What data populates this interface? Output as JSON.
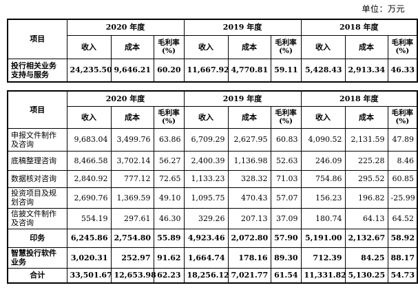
{
  "unit_label": "单位：万元",
  "table1": {
    "header_item": "项目",
    "years": [
      "2020 年度",
      "2019 年度",
      "2018 年度"
    ],
    "sub": [
      "收入",
      "成本",
      "毛利率(%)"
    ],
    "rows": [
      {
        "label": "投行相关业务支持与服务",
        "values": [
          "24,235.50",
          "9,646.21",
          "60.20",
          "11,667.92",
          "4,770.81",
          "59.11",
          "5,428.43",
          "2,913.34",
          "46.33"
        ]
      }
    ]
  },
  "table2": {
    "header_item": "项目",
    "years": [
      "2020 年度",
      "2019 年度",
      "2018 年度"
    ],
    "sub": [
      "收入",
      "成本",
      "毛利率(%)"
    ],
    "rows": [
      {
        "label": "申报文件制作及咨询",
        "values": [
          "9,683.04",
          "3,499.76",
          "63.86",
          "6,709.29",
          "2,627.95",
          "60.83",
          "4,090.52",
          "2,131.59",
          "47.89"
        ]
      },
      {
        "label": "底稿整理咨询",
        "values": [
          "8,466.58",
          "3,702.14",
          "56.27",
          "2,400.39",
          "1,136.98",
          "52.63",
          "246.09",
          "225.28",
          "8.46"
        ]
      },
      {
        "label": "数据核对咨询",
        "values": [
          "2,840.92",
          "777.12",
          "72.65",
          "1,133.23",
          "328.32",
          "71.03",
          "754.86",
          "295.52",
          "60.85"
        ]
      },
      {
        "label": "投资项目及规划咨询",
        "values": [
          "2,690.76",
          "1,369.59",
          "49.10",
          "1,095.75",
          "470.43",
          "57.07",
          "156.23",
          "196.82",
          "-25.99"
        ]
      },
      {
        "label": "信披文件制作及咨询",
        "values": [
          "554.19",
          "297.61",
          "46.30",
          "329.26",
          "207.13",
          "37.09",
          "180.74",
          "64.13",
          "64.52"
        ]
      },
      {
        "label": "印务",
        "values": [
          "6,245.86",
          "2,754.80",
          "55.89",
          "4,923.46",
          "2,072.80",
          "57.90",
          "5,191.00",
          "2,132.67",
          "58.92"
        ]
      },
      {
        "label": "智慧投行软件业务",
        "values": [
          "3,020.31",
          "252.97",
          "91.62",
          "1,664.74",
          "178.16",
          "89.30",
          "712.39",
          "84.25",
          "88.17"
        ]
      },
      {
        "label": "合计",
        "values": [
          "33,501.67",
          "12,653.98",
          "62.23",
          "18,256.12",
          "7,021.77",
          "61.54",
          "11,331.82",
          "5,130.25",
          "54.73"
        ]
      }
    ]
  }
}
